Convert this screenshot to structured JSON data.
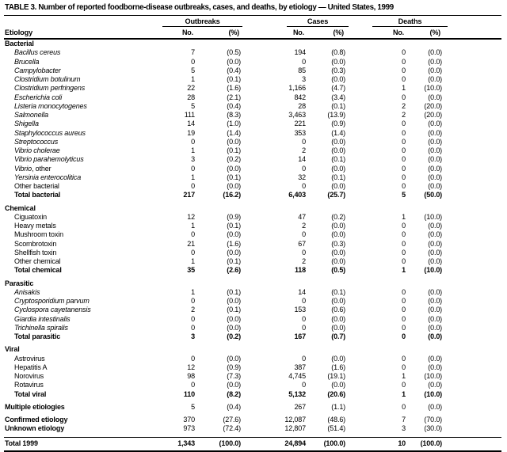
{
  "table": {
    "title": "TABLE 3. Number of reported foodborne-disease outbreaks, cases, and deaths, by etiology — United States, 1999",
    "etiology_header": "Etiology",
    "column_groups": [
      "Outbreaks",
      "Cases",
      "Deaths"
    ],
    "subheaders": [
      "No.",
      "(%)"
    ],
    "sections": [
      {
        "header": "Bacterial",
        "rows": [
          {
            "label": "Bacillus cereus",
            "style": "italic",
            "values": [
              "7",
              "(0.5)",
              "194",
              "(0.8)",
              "0",
              "(0.0)"
            ]
          },
          {
            "label": "Brucella",
            "style": "italic",
            "values": [
              "0",
              "(0.0)",
              "0",
              "(0.0)",
              "0",
              "(0.0)"
            ]
          },
          {
            "label": "Campylobacter",
            "style": "italic",
            "values": [
              "5",
              "(0.4)",
              "85",
              "(0.3)",
              "0",
              "(0.0)"
            ]
          },
          {
            "label": "Clostridium botulinum",
            "style": "italic",
            "values": [
              "1",
              "(0.1)",
              "3",
              "(0.0)",
              "0",
              "(0.0)"
            ]
          },
          {
            "label": "Clostridium perfringens",
            "style": "italic",
            "values": [
              "22",
              "(1.6)",
              "1,166",
              "(4.7)",
              "1",
              "(10.0)"
            ]
          },
          {
            "label": "Escherichia coli",
            "style": "italic",
            "values": [
              "28",
              "(2.1)",
              "842",
              "(3.4)",
              "0",
              "(0.0)"
            ]
          },
          {
            "label": "Listeria monocytogenes",
            "style": "italic",
            "values": [
              "5",
              "(0.4)",
              "28",
              "(0.1)",
              "2",
              "(20.0)"
            ]
          },
          {
            "label": "Salmonella",
            "style": "italic",
            "values": [
              "111",
              "(8.3)",
              "3,463",
              "(13.9)",
              "2",
              "(20.0)"
            ]
          },
          {
            "label": "Shigella",
            "style": "italic",
            "values": [
              "14",
              "(1.0)",
              "221",
              "(0.9)",
              "0",
              "(0.0)"
            ]
          },
          {
            "label": "Staphylococcus aureus",
            "style": "italic",
            "values": [
              "19",
              "(1.4)",
              "353",
              "(1.4)",
              "0",
              "(0.0)"
            ]
          },
          {
            "label": "Streptococcus",
            "style": "italic",
            "values": [
              "0",
              "(0.0)",
              "0",
              "(0.0)",
              "0",
              "(0.0)"
            ]
          },
          {
            "label": "Vibrio cholerae",
            "style": "italic",
            "values": [
              "1",
              "(0.1)",
              "2",
              "(0.0)",
              "0",
              "(0.0)"
            ]
          },
          {
            "label": "Vibrio parahemolyticus",
            "style": "italic",
            "values": [
              "3",
              "(0.2)",
              "14",
              "(0.1)",
              "0",
              "(0.0)"
            ]
          },
          {
            "label": "Vibrio",
            "suffix": ", other",
            "style": "italic",
            "values": [
              "0",
              "(0.0)",
              "0",
              "(0.0)",
              "0",
              "(0.0)"
            ]
          },
          {
            "label": "Yersinia enterocolitica",
            "style": "italic",
            "values": [
              "1",
              "(0.1)",
              "32",
              "(0.1)",
              "0",
              "(0.0)"
            ]
          },
          {
            "label": "Other bacterial",
            "style": "plain",
            "values": [
              "0",
              "(0.0)",
              "0",
              "(0.0)",
              "0",
              "(0.0)"
            ]
          },
          {
            "label": "Total bacterial",
            "style": "bold",
            "values_bold": true,
            "values": [
              "217",
              "(16.2)",
              "6,403",
              "(25.7)",
              "5",
              "(50.0)"
            ]
          }
        ]
      },
      {
        "header": "Chemical",
        "gap": true,
        "rows": [
          {
            "label": "Ciguatoxin",
            "style": "plain",
            "values": [
              "12",
              "(0.9)",
              "47",
              "(0.2)",
              "1",
              "(10.0)"
            ]
          },
          {
            "label": "Heavy metals",
            "style": "plain",
            "values": [
              "1",
              "(0.1)",
              "2",
              "(0.0)",
              "0",
              "(0.0)"
            ]
          },
          {
            "label": "Mushroom toxin",
            "style": "plain",
            "values": [
              "0",
              "(0.0)",
              "0",
              "(0.0)",
              "0",
              "(0.0)"
            ]
          },
          {
            "label": "Scombrotoxin",
            "style": "plain",
            "values": [
              "21",
              "(1.6)",
              "67",
              "(0.3)",
              "0",
              "(0.0)"
            ]
          },
          {
            "label": "Shellfish toxin",
            "style": "plain",
            "values": [
              "0",
              "(0.0)",
              "0",
              "(0.0)",
              "0",
              "(0.0)"
            ]
          },
          {
            "label": "Other chemical",
            "style": "plain",
            "values": [
              "1",
              "(0.1)",
              "2",
              "(0.0)",
              "0",
              "(0.0)"
            ]
          },
          {
            "label": "Total chemical",
            "style": "bold",
            "values_bold": true,
            "values": [
              "35",
              "(2.6)",
              "118",
              "(0.5)",
              "1",
              "(10.0)"
            ]
          }
        ]
      },
      {
        "header": "Parasitic",
        "gap": true,
        "rows": [
          {
            "label": "Anisakis",
            "style": "italic",
            "values": [
              "1",
              "(0.1)",
              "14",
              "(0.1)",
              "0",
              "(0.0)"
            ]
          },
          {
            "label": "Cryptosporidium parvum",
            "style": "italic",
            "values": [
              "0",
              "(0.0)",
              "0",
              "(0.0)",
              "0",
              "(0.0)"
            ]
          },
          {
            "label": "Cyclospora cayetanensis",
            "style": "italic",
            "values": [
              "2",
              "(0.1)",
              "153",
              "(0.6)",
              "0",
              "(0.0)"
            ]
          },
          {
            "label": "Giardia intestinalis",
            "style": "italic",
            "values": [
              "0",
              "(0.0)",
              "0",
              "(0.0)",
              "0",
              "(0.0)"
            ]
          },
          {
            "label": "Trichinella spiralis",
            "style": "italic",
            "values": [
              "0",
              "(0.0)",
              "0",
              "(0.0)",
              "0",
              "(0.0)"
            ]
          },
          {
            "label": "Total parasitic",
            "style": "bold",
            "values_bold": true,
            "values": [
              "3",
              "(0.2)",
              "167",
              "(0.7)",
              "0",
              "(0.0)"
            ]
          }
        ]
      },
      {
        "header": "Viral",
        "gap": true,
        "rows": [
          {
            "label": "Astrovirus",
            "style": "plain",
            "values": [
              "0",
              "(0.0)",
              "0",
              "(0.0)",
              "0",
              "(0.0)"
            ]
          },
          {
            "label": "Hepatitis A",
            "style": "plain",
            "values": [
              "12",
              "(0.9)",
              "387",
              "(1.6)",
              "0",
              "(0.0)"
            ]
          },
          {
            "label": "Norovirus",
            "style": "plain",
            "values": [
              "98",
              "(7.3)",
              "4,745",
              "(19.1)",
              "1",
              "(10.0)"
            ]
          },
          {
            "label": "Rotavirus",
            "style": "plain",
            "values": [
              "0",
              "(0.0)",
              "0",
              "(0.0)",
              "0",
              "(0.0)"
            ]
          },
          {
            "label": "Total viral",
            "style": "bold",
            "values_bold": true,
            "values": [
              "110",
              "(8.2)",
              "5,132",
              "(20.6)",
              "1",
              "(10.0)"
            ]
          }
        ]
      },
      {
        "header": "",
        "gap": true,
        "rows": [
          {
            "label": "Multiple etiologies",
            "style": "bold",
            "values": [
              "5",
              "(0.4)",
              "267",
              "(1.1)",
              "0",
              "(0.0)"
            ]
          }
        ]
      },
      {
        "header": "",
        "gap": true,
        "pad_bottom": true,
        "rows": [
          {
            "label": "Confirmed etiology",
            "style": "bold",
            "values": [
              "370",
              "(27.6)",
              "12,087",
              "(48.6)",
              "7",
              "(70.0)"
            ]
          },
          {
            "label": "Unknown etiology",
            "style": "bold",
            "values": [
              "973",
              "(72.4)",
              "12,807",
              "(51.4)",
              "3",
              "(30.0)"
            ]
          }
        ]
      },
      {
        "header": "",
        "grand": true,
        "rows": [
          {
            "label": "Total 1999",
            "style": "bold",
            "values_bold": true,
            "values": [
              "1,343",
              "(100.0)",
              "24,894",
              "(100.0)",
              "10",
              "(100.0)"
            ]
          }
        ]
      }
    ]
  }
}
